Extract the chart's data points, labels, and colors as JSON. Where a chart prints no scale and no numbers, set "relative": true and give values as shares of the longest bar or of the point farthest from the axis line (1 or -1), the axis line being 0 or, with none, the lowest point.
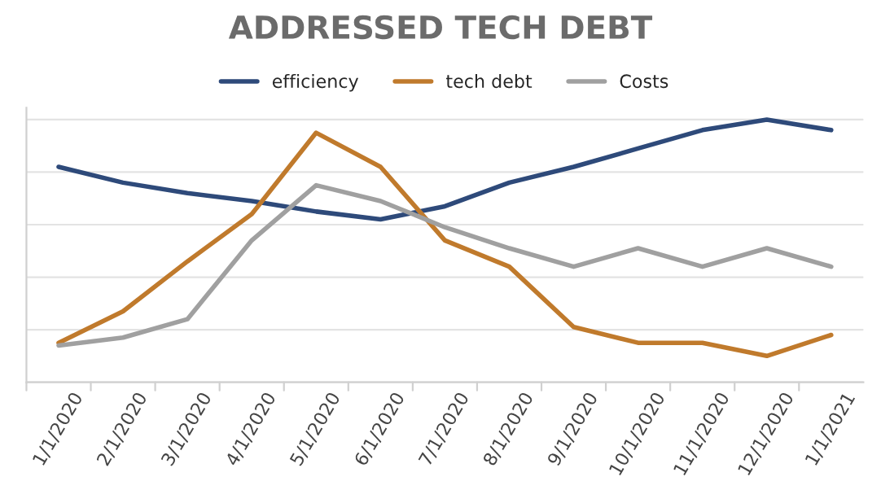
{
  "chart_data": {
    "type": "line",
    "title": "ADDRESSED TECH DEBT",
    "relative": true,
    "grid": "y",
    "legend": "top",
    "marker": "none",
    "line_style": "solid",
    "categories": [
      "1/1/2020",
      "2/1/2020",
      "3/1/2020",
      "4/1/2020",
      "5/1/2020",
      "6/1/2020",
      "7/1/2020",
      "8/1/2020",
      "9/1/2020",
      "10/1/2020",
      "11/1/2020",
      "12/1/2020",
      "1/1/2021"
    ],
    "series": [
      {
        "name": "efficiency",
        "color": "#2e4a7a",
        "values": [
          0.82,
          0.76,
          0.72,
          0.69,
          0.65,
          0.62,
          0.67,
          0.76,
          0.82,
          0.89,
          0.96,
          1.0,
          0.96
        ]
      },
      {
        "name": "tech debt",
        "color": "#c07a2c",
        "values": [
          0.15,
          0.27,
          0.46,
          0.64,
          0.95,
          0.82,
          0.54,
          0.44,
          0.21,
          0.15,
          0.15,
          0.1,
          0.18
        ]
      },
      {
        "name": "Costs",
        "color": "#a0a0a0",
        "values": [
          0.14,
          0.17,
          0.24,
          0.54,
          0.75,
          0.69,
          0.59,
          0.51,
          0.44,
          0.51,
          0.44,
          0.51,
          0.44
        ]
      }
    ]
  }
}
